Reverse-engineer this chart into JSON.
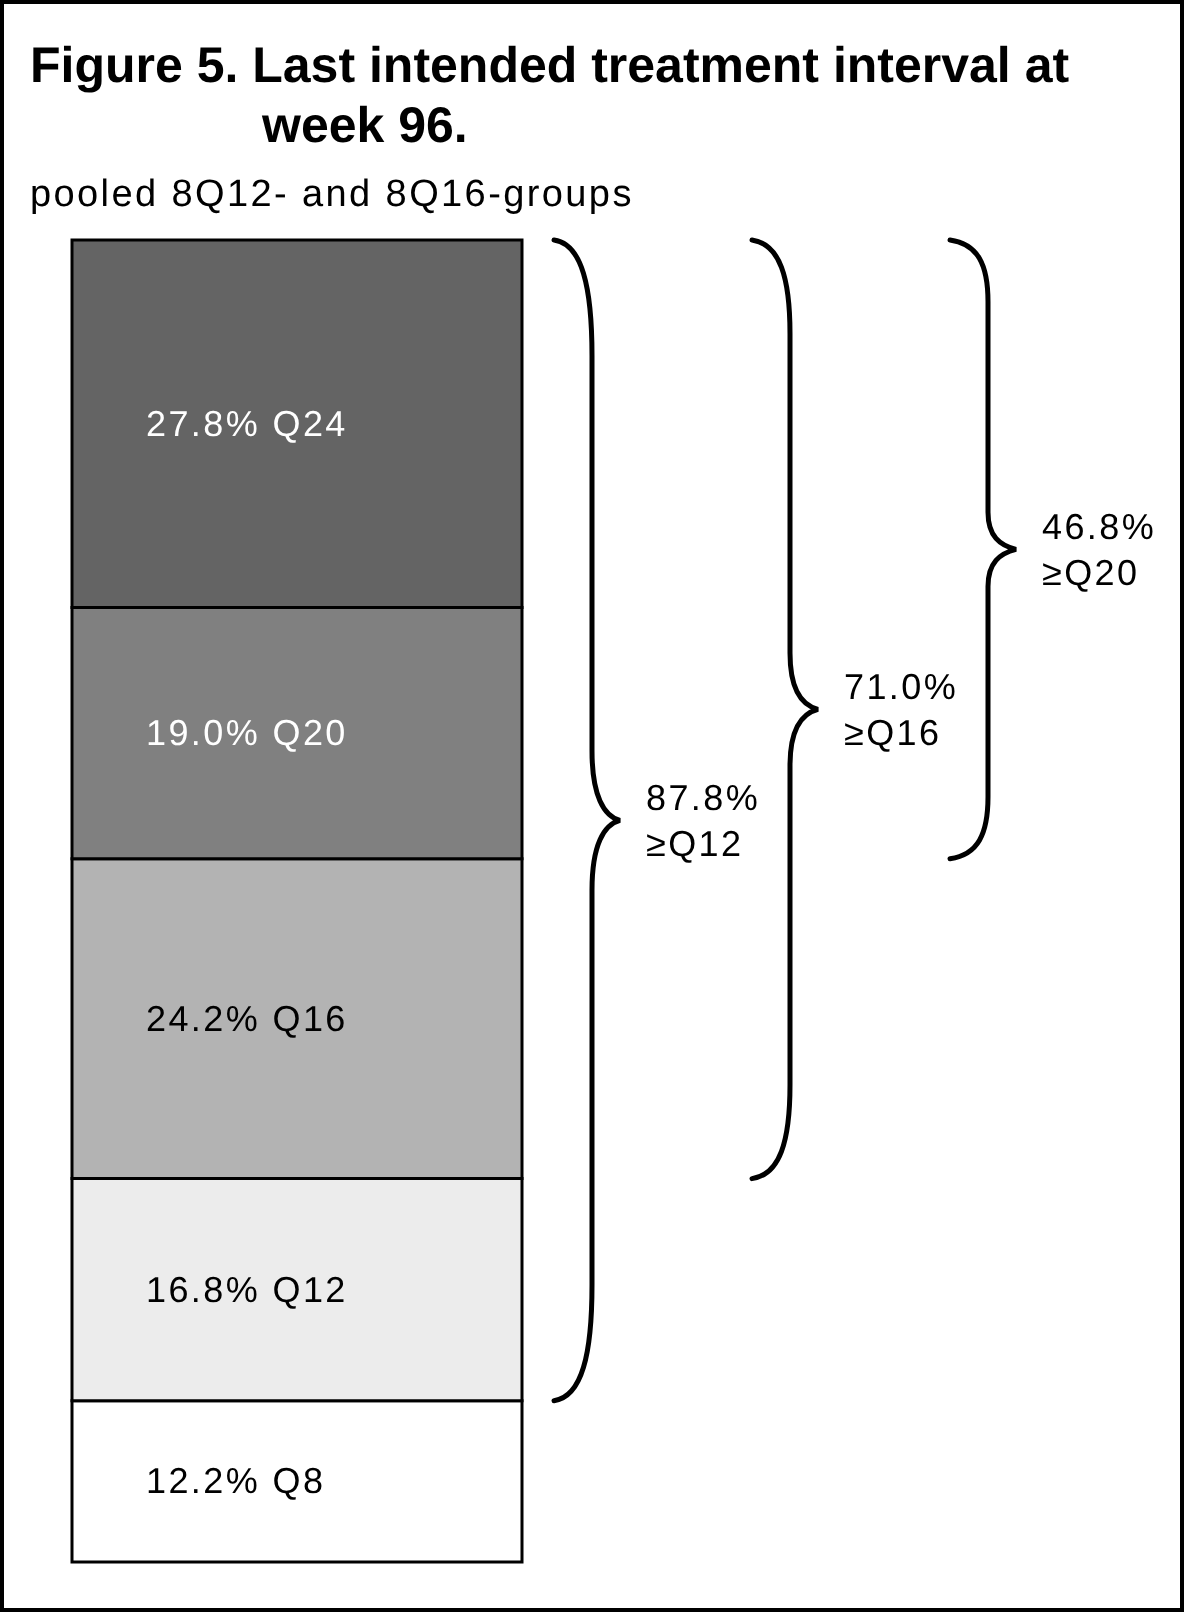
{
  "chart_data": {
    "type": "bar",
    "title": "Figure 5. Last intended treatment interval at week 96.",
    "subtitle": "pooled 8Q12- and 8Q16-groups",
    "categories": [
      null
    ],
    "stacked": true,
    "series": [
      {
        "color": "#ffffff",
        "values": [
          12.2
        ],
        "value_labels": [
          "12.2% Q8"
        ]
      },
      {
        "color": "#ececec",
        "values": [
          16.8
        ],
        "value_labels": [
          "16.8% Q12"
        ]
      },
      {
        "color": "#b3b3b3",
        "values": [
          24.2
        ],
        "value_labels": [
          "24.2% Q16"
        ]
      },
      {
        "color": "#808080",
        "values": [
          19.0
        ],
        "value_labels": [
          "19.0% Q20"
        ]
      },
      {
        "color": "#646464",
        "values": [
          27.8
        ],
        "value_labels": [
          "27.8% Q24"
        ]
      }
    ],
    "annotations": [
      "87.8% ≥Q12",
      "71.0% ≥Q16",
      "46.8% ≥Q20"
    ]
  }
}
